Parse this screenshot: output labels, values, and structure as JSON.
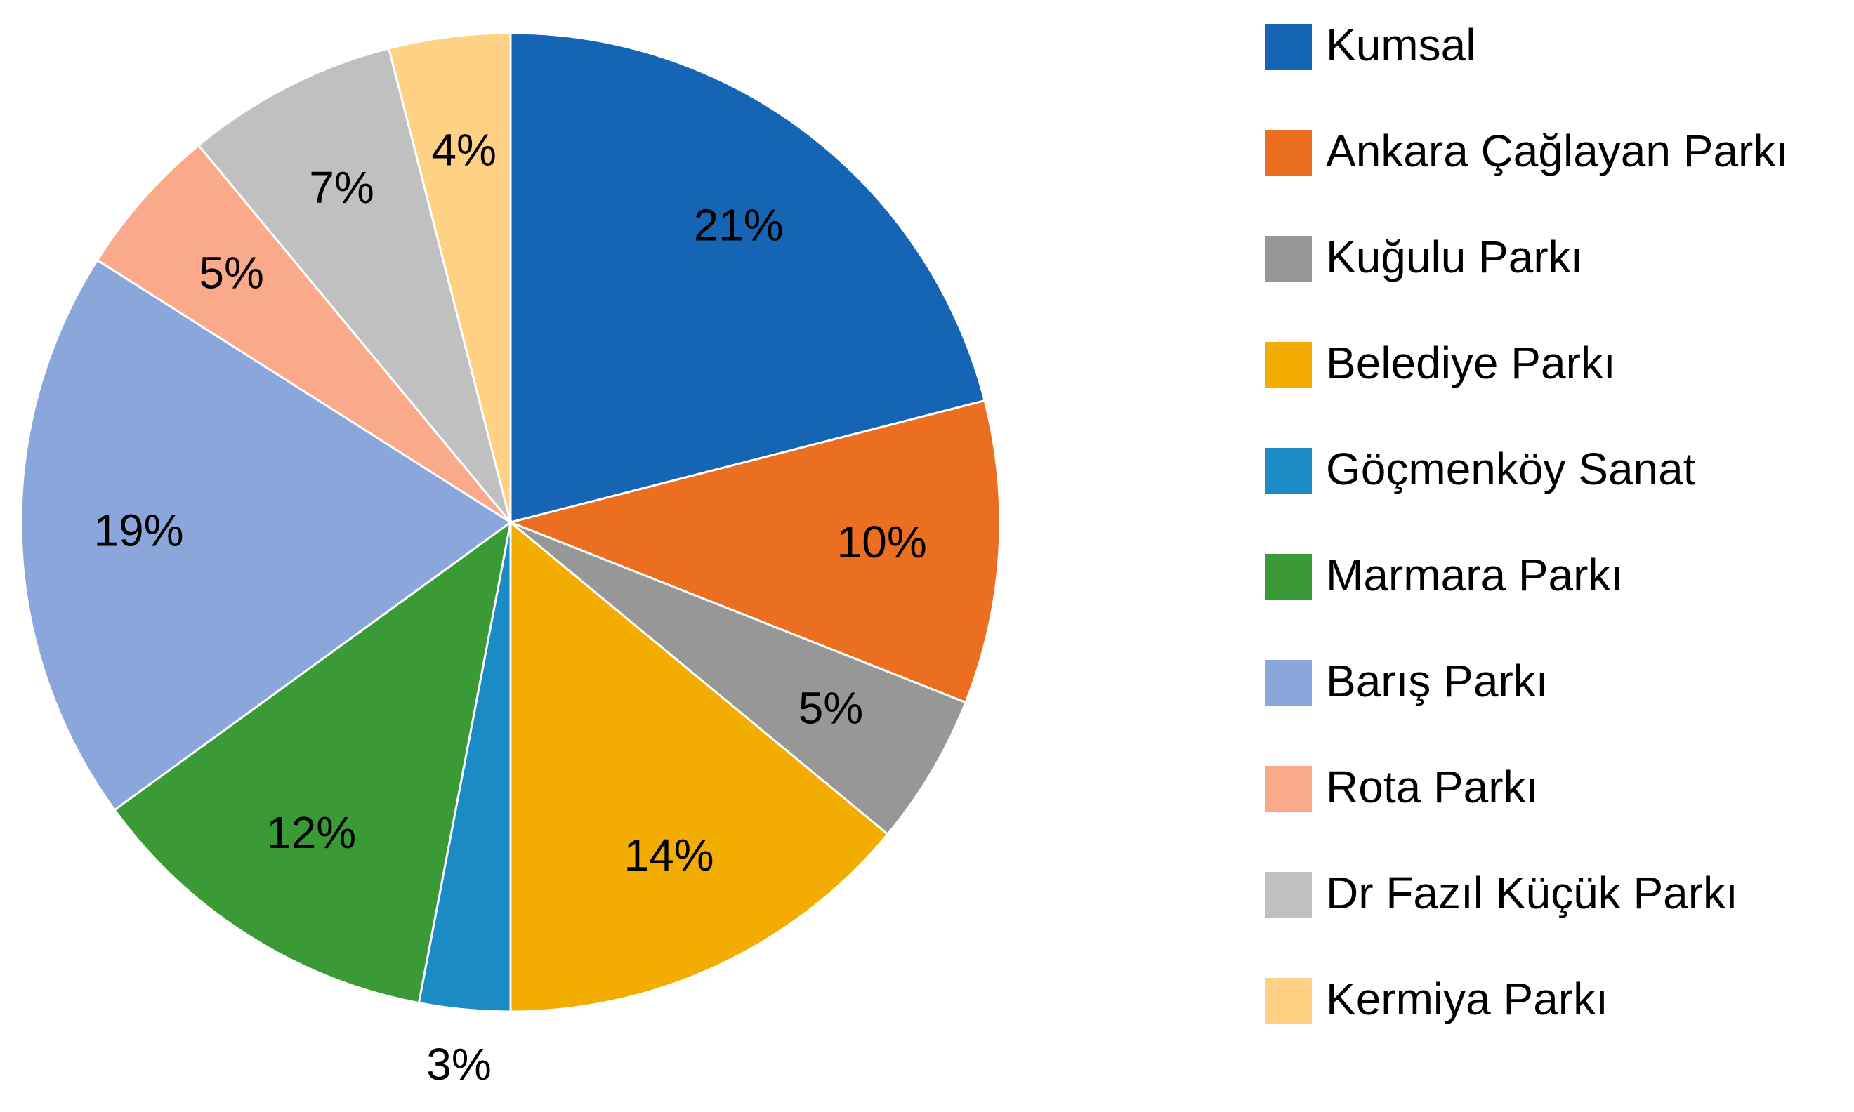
{
  "chart_data": {
    "type": "pie",
    "categories": [
      "Kumsal",
      "Ankara Çağlayan Parkı",
      "Kuğulu Parkı",
      "Belediye Parkı",
      "Göçmenköy Sanat",
      "Marmara Parkı",
      "Barış Parkı",
      "Rota Parkı",
      "Dr Fazıl Küçük Parkı",
      "Kermiya Parkı"
    ],
    "values": [
      21,
      10,
      5,
      14,
      3,
      12,
      19,
      5,
      7,
      4
    ],
    "value_labels": [
      "21%",
      "10%",
      "5%",
      "14%",
      "3%",
      "12%",
      "19%",
      "5%",
      "7%",
      "4%"
    ],
    "colors": [
      "#1565b4",
      "#ec6e20",
      "#979797",
      "#f3ad00",
      "#1a8bc4",
      "#3a9a35",
      "#8aa6da",
      "#fba98b",
      "#c0c0c0",
      "#fed185"
    ],
    "legend": "right"
  }
}
